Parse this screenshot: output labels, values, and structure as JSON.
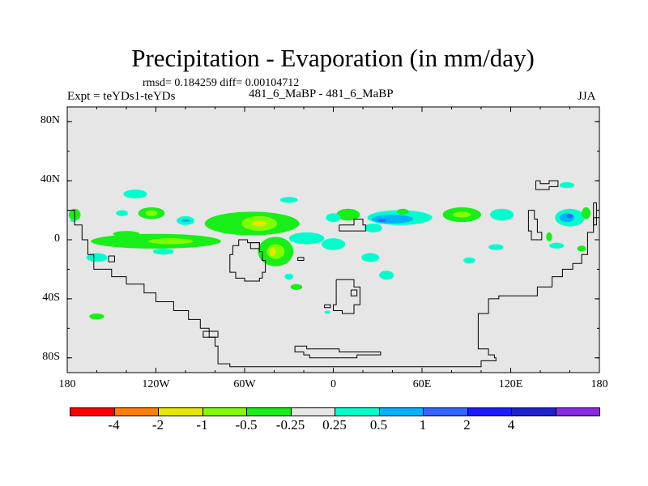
{
  "chart_data": {
    "type": "map",
    "title": "Precipitation - Evaporation (in mm/day)",
    "stats": "rmsd= 0.184259 diff= 0.00104712",
    "experiment": "Expt = teYDs1-teYDs",
    "center_label": "481_6_MaBP - 481_6_MaBP",
    "season": "JJA",
    "xlim": [
      -180,
      180
    ],
    "ylim": [
      -90,
      90
    ],
    "y_ticks": [
      {
        "value": 80,
        "label": "80N"
      },
      {
        "value": 40,
        "label": "40N"
      },
      {
        "value": 0,
        "label": "0"
      },
      {
        "value": -40,
        "label": "40S"
      },
      {
        "value": -80,
        "label": "80S"
      }
    ],
    "x_ticks": [
      {
        "value": -180,
        "label": "180"
      },
      {
        "value": -120,
        "label": "120W"
      },
      {
        "value": -60,
        "label": "60W"
      },
      {
        "value": 0,
        "label": "0"
      },
      {
        "value": 60,
        "label": "60E"
      },
      {
        "value": 120,
        "label": "120E"
      },
      {
        "value": 180,
        "label": "180"
      }
    ],
    "colorbar": {
      "colors": [
        "#ff0000",
        "#ff7f00",
        "#e6e600",
        "#80ff00",
        "#18ee18",
        "#e6e6e6",
        "#00ffcc",
        "#00b3ff",
        "#3366ff",
        "#1a1aff",
        "#2020cc",
        "#8a2be2"
      ],
      "labels": [
        "-4",
        "-2",
        "-1",
        "-0.5",
        "-0.25",
        "0.25",
        "0.5",
        "1",
        "2",
        "4"
      ]
    },
    "anomaly_regions": [
      {
        "level": "0.5",
        "lon": -134,
        "lat": 31,
        "rlon": 8,
        "rlat": 3
      },
      {
        "level": "0.5",
        "lon": -30,
        "lat": 27,
        "rlon": 6,
        "rlat": 2
      },
      {
        "level": "-0.25",
        "lon": -175,
        "lat": 17,
        "rlon": 4,
        "rlat": 4
      },
      {
        "level": "-0.25",
        "lon": -123,
        "lat": 18,
        "rlon": 9,
        "rlat": 4
      },
      {
        "level": "-0.5",
        "lon": -123,
        "lat": 18,
        "rlon": 4,
        "rlat": 2
      },
      {
        "level": "0.5",
        "lon": -143,
        "lat": 18,
        "rlon": 4,
        "rlat": 2
      },
      {
        "level": "-0.25",
        "lon": -55,
        "lat": 11,
        "rlon": 32,
        "rlat": 8
      },
      {
        "level": "-0.5",
        "lon": -50,
        "lat": 11,
        "rlon": 12,
        "rlat": 5
      },
      {
        "level": "-1",
        "lon": -50,
        "lat": 11,
        "rlon": 5,
        "rlat": 2
      },
      {
        "level": "0.5",
        "lon": -100,
        "lat": 13,
        "rlon": 6,
        "rlat": 3
      },
      {
        "level": "1",
        "lon": -100,
        "lat": 13,
        "rlon": 3,
        "rlat": 1
      },
      {
        "level": "-0.25",
        "lon": -120,
        "lat": -1,
        "rlon": 44,
        "rlat": 5
      },
      {
        "level": "-0.5",
        "lon": -110,
        "lat": -1,
        "rlon": 15,
        "rlat": 2
      },
      {
        "level": "-0.25",
        "lon": -140,
        "lat": 4,
        "rlon": 9,
        "rlat": 2
      },
      {
        "level": "0.5",
        "lon": -160,
        "lat": -12,
        "rlon": 7,
        "rlat": 3
      },
      {
        "level": "0.5",
        "lon": -115,
        "lat": -8,
        "rlon": 7,
        "rlat": 2
      },
      {
        "level": "-0.25",
        "lon": -39,
        "lat": -8,
        "rlon": 12,
        "rlat": 10
      },
      {
        "level": "-0.5",
        "lon": -39,
        "lat": -8,
        "rlon": 6,
        "rlat": 5
      },
      {
        "level": "-1",
        "lon": -41,
        "lat": -8,
        "rlon": 2,
        "rlat": 3
      },
      {
        "level": "0.5",
        "lon": -18,
        "lat": 1,
        "rlon": 12,
        "rlat": 4
      },
      {
        "level": "0.5",
        "lon": 0,
        "lat": -3,
        "rlon": 8,
        "rlat": 4
      },
      {
        "level": "-0.25",
        "lon": 10,
        "lat": 17,
        "rlon": 8,
        "rlat": 4
      },
      {
        "level": "0.5",
        "lon": 0,
        "lat": 15,
        "rlon": 5,
        "rlat": 3
      },
      {
        "level": "0.5",
        "lon": 27,
        "lat": 8,
        "rlon": 6,
        "rlat": 3
      },
      {
        "level": "0.5",
        "lon": 45,
        "lat": 15,
        "rlon": 22,
        "rlat": 5
      },
      {
        "level": "1",
        "lon": 40,
        "lat": 14,
        "rlon": 14,
        "rlat": 3
      },
      {
        "level": "2",
        "lon": 33,
        "lat": 13,
        "rlon": 3,
        "rlat": 1
      },
      {
        "level": "-0.25",
        "lon": 47,
        "lat": 19,
        "rlon": 4,
        "rlat": 2
      },
      {
        "level": "0.5",
        "lon": 25,
        "lat": -12,
        "rlon": 6,
        "rlat": 3
      },
      {
        "level": "0.5",
        "lon": 36,
        "lat": -24,
        "rlon": 5,
        "rlat": 3
      },
      {
        "level": "-0.25",
        "lon": 87,
        "lat": 17,
        "rlon": 13,
        "rlat": 5
      },
      {
        "level": "-0.5",
        "lon": 87,
        "lat": 17,
        "rlon": 6,
        "rlat": 2
      },
      {
        "level": "0.5",
        "lon": 114,
        "lat": 17,
        "rlon": 8,
        "rlat": 4
      },
      {
        "level": "0.5",
        "lon": 110,
        "lat": -5,
        "rlon": 5,
        "rlat": 2
      },
      {
        "level": "0.5",
        "lon": 92,
        "lat": -14,
        "rlon": 4,
        "rlat": 2
      },
      {
        "level": "0.5",
        "lon": 160,
        "lat": 15,
        "rlon": 10,
        "rlat": 6
      },
      {
        "level": "1",
        "lon": 158,
        "lat": 15,
        "rlon": 5,
        "rlat": 3
      },
      {
        "level": "2",
        "lon": 160,
        "lat": 16,
        "rlon": 2,
        "rlat": 1.5
      },
      {
        "level": "-0.25",
        "lon": 171,
        "lat": 18,
        "rlon": 3,
        "rlat": 4
      },
      {
        "level": "-0.25",
        "lon": 146,
        "lat": 2,
        "rlon": 2,
        "rlat": 3
      },
      {
        "level": "0.5",
        "lon": 158,
        "lat": 37,
        "rlon": 5,
        "rlat": 2
      },
      {
        "level": "0.5",
        "lon": 151,
        "lat": -4,
        "rlon": 5,
        "rlat": 2
      },
      {
        "level": "-0.25",
        "lon": 168,
        "lat": -6,
        "rlon": 3,
        "rlat": 2
      },
      {
        "level": "-0.25",
        "lon": -25,
        "lat": -32,
        "rlon": 4,
        "rlat": 2
      },
      {
        "level": "0.5",
        "lon": -30,
        "lat": -25,
        "rlon": 3,
        "rlat": 2
      },
      {
        "level": "-0.25",
        "lon": -160,
        "lat": -52,
        "rlon": 5,
        "rlat": 2
      },
      {
        "level": "0.5",
        "lon": -4,
        "lat": -49,
        "rlon": 2,
        "rlat": 1
      },
      {
        "level": "0.5",
        "lon": -176,
        "lat": 13,
        "rlon": 2,
        "rlat": 1
      }
    ],
    "coastlines": [
      [
        [
          -180,
          20
        ],
        [
          -175,
          20
        ],
        [
          -175,
          10
        ],
        [
          -170,
          10
        ],
        [
          -170,
          0
        ],
        [
          -166,
          0
        ],
        [
          -166,
          -10
        ],
        [
          -162,
          -10
        ],
        [
          -162,
          -20
        ],
        [
          -150,
          -20
        ],
        [
          -150,
          -25
        ],
        [
          -140,
          -25
        ],
        [
          -140,
          -30
        ],
        [
          -128,
          -30
        ],
        [
          -128,
          -36
        ],
        [
          -120,
          -36
        ],
        [
          -120,
          -42
        ],
        [
          -108,
          -42
        ],
        [
          -108,
          -48
        ],
        [
          -98,
          -48
        ],
        [
          -98,
          -54
        ],
        [
          -90,
          -54
        ],
        [
          -90,
          -60
        ],
        [
          -84,
          -60
        ],
        [
          -84,
          -66
        ],
        [
          -80,
          -66
        ],
        [
          -80,
          -72
        ],
        [
          -78,
          -72
        ],
        [
          -78,
          -84
        ],
        [
          -70,
          -84
        ],
        [
          -70,
          -86
        ],
        [
          100,
          -86
        ],
        [
          100,
          -82
        ],
        [
          110,
          -82
        ],
        [
          110,
          -80
        ],
        [
          109,
          -80
        ],
        [
          109,
          -78
        ],
        [
          105,
          -78
        ],
        [
          105,
          -74
        ],
        [
          98,
          -74
        ],
        [
          98,
          -50
        ],
        [
          105,
          -50
        ],
        [
          105,
          -40
        ],
        [
          112,
          -40
        ],
        [
          112,
          -38
        ],
        [
          120,
          -38
        ],
        [
          120,
          -38
        ],
        [
          138,
          -38
        ],
        [
          138,
          -32
        ],
        [
          148,
          -32
        ],
        [
          148,
          -25
        ],
        [
          155,
          -25
        ],
        [
          155,
          -20
        ],
        [
          162,
          -20
        ],
        [
          162,
          -16
        ],
        [
          168,
          -16
        ],
        [
          168,
          -10
        ],
        [
          172,
          -10
        ],
        [
          172,
          5
        ],
        [
          176,
          5
        ],
        [
          176,
          15
        ],
        [
          180,
          15
        ]
      ],
      [
        [
          -62,
          0
        ],
        [
          -58,
          0
        ],
        [
          -58,
          -2
        ],
        [
          -50,
          -2
        ],
        [
          -50,
          -8
        ],
        [
          -48,
          -8
        ],
        [
          -48,
          -14
        ],
        [
          -46,
          -14
        ],
        [
          -46,
          -22
        ],
        [
          -48,
          -22
        ],
        [
          -48,
          -26
        ],
        [
          -50,
          -26
        ],
        [
          -50,
          -28
        ],
        [
          -60,
          -28
        ],
        [
          -60,
          -26
        ],
        [
          -66,
          -26
        ],
        [
          -66,
          -22
        ],
        [
          -70,
          -22
        ],
        [
          -70,
          -10
        ],
        [
          -68,
          -10
        ],
        [
          -68,
          -4
        ],
        [
          -64,
          -4
        ],
        [
          -64,
          0
        ],
        [
          -62,
          0
        ]
      ],
      [
        [
          -56,
          -2
        ],
        [
          -50,
          -2
        ],
        [
          -50,
          -6
        ],
        [
          -56,
          -6
        ],
        [
          -56,
          -2
        ]
      ],
      [
        [
          -152,
          -11
        ],
        [
          -148,
          -11
        ],
        [
          -148,
          -15
        ],
        [
          -152,
          -15
        ],
        [
          -152,
          -11
        ]
      ],
      [
        [
          4,
          10
        ],
        [
          14,
          10
        ],
        [
          14,
          14
        ],
        [
          20,
          14
        ],
        [
          20,
          10
        ],
        [
          22,
          10
        ],
        [
          22,
          6
        ],
        [
          4,
          6
        ],
        [
          4,
          10
        ]
      ],
      [
        [
          2,
          -27
        ],
        [
          14,
          -27
        ],
        [
          14,
          -32
        ],
        [
          18,
          -32
        ],
        [
          18,
          -44
        ],
        [
          14,
          -44
        ],
        [
          14,
          -50
        ],
        [
          6,
          -50
        ],
        [
          6,
          -48
        ],
        [
          0,
          -48
        ],
        [
          0,
          -44
        ],
        [
          2,
          -44
        ],
        [
          2,
          -27
        ]
      ],
      [
        [
          12,
          -34
        ],
        [
          16,
          -34
        ],
        [
          16,
          -38
        ],
        [
          12,
          -38
        ],
        [
          12,
          -34
        ]
      ],
      [
        [
          -6,
          -44
        ],
        [
          -2,
          -44
        ],
        [
          -2,
          -46
        ],
        [
          -6,
          -46
        ],
        [
          -6,
          -44
        ]
      ],
      [
        [
          -88,
          -62
        ],
        [
          -78,
          -62
        ],
        [
          -78,
          -66
        ],
        [
          -88,
          -66
        ],
        [
          -88,
          -62
        ]
      ],
      [
        [
          -26,
          -72
        ],
        [
          -18,
          -72
        ],
        [
          -18,
          -74
        ],
        [
          4,
          -74
        ],
        [
          4,
          -76
        ],
        [
          32,
          -76
        ],
        [
          32,
          -78
        ],
        [
          16,
          -78
        ],
        [
          16,
          -80
        ],
        [
          -16,
          -80
        ],
        [
          -16,
          -78
        ],
        [
          -20,
          -78
        ],
        [
          -20,
          -76
        ],
        [
          -26,
          -76
        ],
        [
          -26,
          -72
        ]
      ],
      [
        [
          137,
          40
        ],
        [
          140,
          40
        ],
        [
          140,
          38
        ],
        [
          146,
          38
        ],
        [
          146,
          40
        ],
        [
          152,
          40
        ],
        [
          152,
          36
        ],
        [
          146,
          36
        ],
        [
          146,
          34
        ],
        [
          137,
          34
        ],
        [
          137,
          40
        ]
      ],
      [
        [
          132,
          20
        ],
        [
          136,
          20
        ],
        [
          136,
          14
        ],
        [
          138,
          14
        ],
        [
          138,
          5
        ],
        [
          141,
          5
        ],
        [
          141,
          0
        ],
        [
          134,
          0
        ],
        [
          134,
          6
        ],
        [
          132,
          6
        ],
        [
          132,
          20
        ]
      ],
      [
        [
          176,
          25
        ],
        [
          178,
          25
        ],
        [
          178,
          10
        ],
        [
          176,
          10
        ],
        [
          176,
          25
        ]
      ],
      [
        [
          -24,
          -12
        ],
        [
          -20,
          -12
        ],
        [
          -20,
          -14
        ],
        [
          -24,
          -14
        ],
        [
          -24,
          -12
        ]
      ]
    ]
  }
}
